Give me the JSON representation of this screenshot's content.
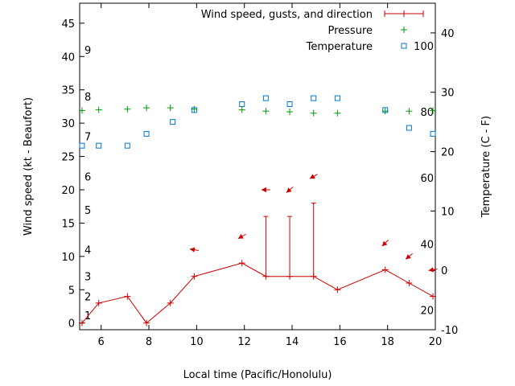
{
  "chart_data": {
    "type": "line",
    "xlabel": "Local time (Pacific/Honolulu)",
    "ylabel": "Wind speed (kt - Beaufort)",
    "y2label": "Temperature (C - F)",
    "xlim": [
      5.1,
      20
    ],
    "ylim": [
      -1,
      48
    ],
    "y2lim": [
      -10,
      45
    ],
    "x_ticks": [
      6,
      8,
      10,
      12,
      14,
      16,
      18,
      20
    ],
    "y_ticks": [
      0,
      5,
      10,
      15,
      20,
      25,
      30,
      35,
      40,
      45
    ],
    "y2_ticks": [
      -10,
      0,
      10,
      20,
      30,
      40
    ],
    "beaufort_labels": [
      {
        "label": "1",
        "y": 1.2
      },
      {
        "label": "2",
        "y": 4.0
      },
      {
        "label": "3",
        "y": 7.0
      },
      {
        "label": "4",
        "y": 11.0
      },
      {
        "label": "5",
        "y": 17.0
      },
      {
        "label": "6",
        "y": 22.0
      },
      {
        "label": "7",
        "y": 28.0
      },
      {
        "label": "8",
        "y": 34.0
      },
      {
        "label": "9",
        "y": 41.0
      }
    ],
    "fahrenheit_labels": [
      {
        "label": "20",
        "temp": -6.7
      },
      {
        "label": "40",
        "temp": 4.4
      },
      {
        "label": "60",
        "temp": 15.6
      },
      {
        "label": "80",
        "temp": 26.7
      },
      {
        "label": "100",
        "temp": 37.8
      }
    ],
    "legend": [
      {
        "label": "Wind speed, gusts, and direction",
        "color": "#cc0000"
      },
      {
        "label": "Pressure",
        "color": "#009900"
      },
      {
        "label": "Temperature",
        "color": "#0077cc"
      }
    ],
    "series": [
      {
        "name": "Wind speed",
        "color": "#cc0000",
        "x": [
          5.2,
          5.9,
          7.1,
          7.9,
          8.9,
          9.9,
          11.9,
          12.9,
          13.9,
          14.9,
          15.9,
          17.9,
          18.9,
          19.9
        ],
        "values": [
          0,
          3,
          4,
          0,
          3,
          7,
          9,
          7,
          7,
          7,
          5,
          8,
          6,
          4
        ]
      },
      {
        "name": "Gusts",
        "color": "#cc0000",
        "x": [
          12.9,
          13.9,
          14.9
        ],
        "values": [
          16,
          16,
          18
        ]
      },
      {
        "name": "Direction",
        "color": "#cc0000",
        "x": [
          9.9,
          11.9,
          12.9,
          13.9,
          14.9,
          17.9,
          18.9,
          19.9
        ],
        "y": [
          11,
          13,
          20,
          20,
          22,
          12,
          10,
          8
        ],
        "angle_deg": [
          190,
          150,
          180,
          140,
          150,
          135,
          140,
          170
        ]
      },
      {
        "name": "Pressure",
        "color": "#009900",
        "x": [
          5.2,
          5.9,
          7.1,
          7.9,
          8.9,
          9.9,
          11.9,
          12.9,
          13.9,
          14.9,
          15.9,
          17.9,
          18.9,
          19.9
        ],
        "values": [
          31.9,
          32.0,
          32.1,
          32.3,
          32.3,
          32.1,
          32.0,
          31.8,
          31.7,
          31.5,
          31.5,
          31.8,
          31.8,
          31.9
        ]
      },
      {
        "name": "Temperature",
        "color": "#0077cc",
        "x": [
          5.2,
          5.9,
          7.1,
          7.9,
          9.0,
          9.9,
          11.9,
          12.9,
          13.9,
          14.9,
          15.9,
          17.9,
          18.9,
          19.9
        ],
        "values": [
          21,
          21,
          21,
          23,
          25,
          27,
          28,
          29,
          28,
          29,
          29,
          27,
          24,
          23
        ]
      }
    ]
  }
}
